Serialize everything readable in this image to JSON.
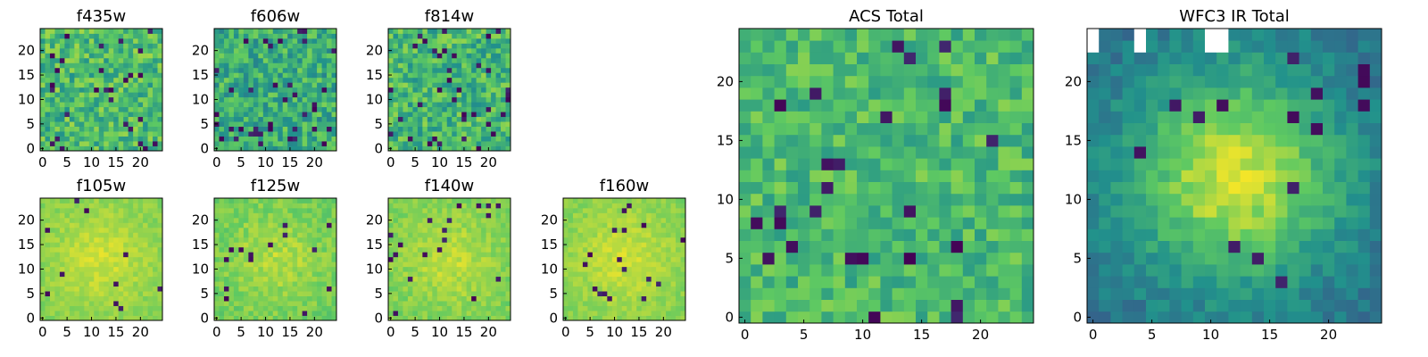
{
  "figure": {
    "colormap": [
      "#440154",
      "#3b528b",
      "#21918c",
      "#5ec962",
      "#fde725"
    ]
  },
  "chart_data": [
    {
      "id": "f435w",
      "type": "heatmap",
      "title": "f435w",
      "grid_size": 25,
      "xlim": [
        0,
        24
      ],
      "ylim": [
        0,
        24
      ],
      "xticks": [
        0,
        5,
        10,
        15,
        20
      ],
      "yticks": [
        0,
        5,
        10,
        15,
        20
      ],
      "grid": false,
      "texture": "noisy",
      "mean_level": 0.68,
      "noise": 0.18,
      "dark_fraction": 0.06
    },
    {
      "id": "f606w",
      "type": "heatmap",
      "title": "f606w",
      "grid_size": 25,
      "xlim": [
        0,
        24
      ],
      "ylim": [
        0,
        24
      ],
      "xticks": [
        0,
        5,
        10,
        15,
        20
      ],
      "yticks": [
        0,
        5,
        10,
        15,
        20
      ],
      "grid": false,
      "texture": "noisy",
      "mean_level": 0.62,
      "noise": 0.18,
      "dark_fraction": 0.06
    },
    {
      "id": "f814w",
      "type": "heatmap",
      "title": "f814w",
      "grid_size": 25,
      "xlim": [
        0,
        24
      ],
      "ylim": [
        0,
        24
      ],
      "xticks": [
        0,
        5,
        10,
        15,
        20
      ],
      "yticks": [
        0,
        5,
        10,
        15,
        20
      ],
      "grid": false,
      "texture": "noisy",
      "mean_level": 0.66,
      "noise": 0.18,
      "dark_fraction": 0.06
    },
    {
      "id": "f105w",
      "type": "heatmap",
      "title": "f105w",
      "grid_size": 25,
      "xlim": [
        0,
        24
      ],
      "ylim": [
        0,
        24
      ],
      "xticks": [
        0,
        5,
        10,
        15,
        20
      ],
      "yticks": [
        0,
        5,
        10,
        15,
        20
      ],
      "grid": false,
      "texture": "smooth",
      "mean_level": 0.86,
      "noise": 0.05,
      "dark_fraction": 0.02
    },
    {
      "id": "f125w",
      "type": "heatmap",
      "title": "f125w",
      "grid_size": 25,
      "xlim": [
        0,
        24
      ],
      "ylim": [
        0,
        24
      ],
      "xticks": [
        0,
        5,
        10,
        15,
        20
      ],
      "yticks": [
        0,
        5,
        10,
        15,
        20
      ],
      "grid": false,
      "texture": "smooth",
      "mean_level": 0.82,
      "noise": 0.07,
      "dark_fraction": 0.02
    },
    {
      "id": "f140w",
      "type": "heatmap",
      "title": "f140w",
      "grid_size": 25,
      "xlim": [
        0,
        24
      ],
      "ylim": [
        0,
        24
      ],
      "xticks": [
        0,
        5,
        10,
        15,
        20
      ],
      "yticks": [
        0,
        5,
        10,
        15,
        20
      ],
      "grid": false,
      "texture": "smooth",
      "mean_level": 0.84,
      "noise": 0.06,
      "dark_fraction": 0.02
    },
    {
      "id": "f160w",
      "type": "heatmap",
      "title": "f160w",
      "grid_size": 25,
      "xlim": [
        0,
        24
      ],
      "ylim": [
        0,
        24
      ],
      "xticks": [
        0,
        5,
        10,
        15,
        20
      ],
      "yticks": [
        0,
        5,
        10,
        15,
        20
      ],
      "grid": false,
      "texture": "smooth",
      "mean_level": 0.86,
      "noise": 0.05,
      "dark_fraction": 0.02
    },
    {
      "id": "acs-total",
      "type": "heatmap",
      "title": "ACS Total",
      "grid_size": 25,
      "xlim": [
        0,
        24
      ],
      "ylim": [
        0,
        24
      ],
      "xticks": [
        0,
        5,
        10,
        15,
        20
      ],
      "yticks": [
        0,
        5,
        10,
        15,
        20
      ],
      "grid": false,
      "texture": "blocky",
      "mean_level": 0.68,
      "noise": 0.14,
      "dark_fraction": 0.03
    },
    {
      "id": "wfc3-ir-total",
      "type": "heatmap",
      "title": "WFC3 IR Total",
      "grid_size": 25,
      "xlim": [
        0,
        24
      ],
      "ylim": [
        0,
        24
      ],
      "xticks": [
        0,
        5,
        10,
        15,
        20
      ],
      "yticks": [
        0,
        5,
        10,
        15,
        20
      ],
      "grid": false,
      "texture": "blob",
      "mean_level": 0.5,
      "noise": 0.08,
      "dark_fraction": 0.02,
      "blank_cells": true
    }
  ]
}
